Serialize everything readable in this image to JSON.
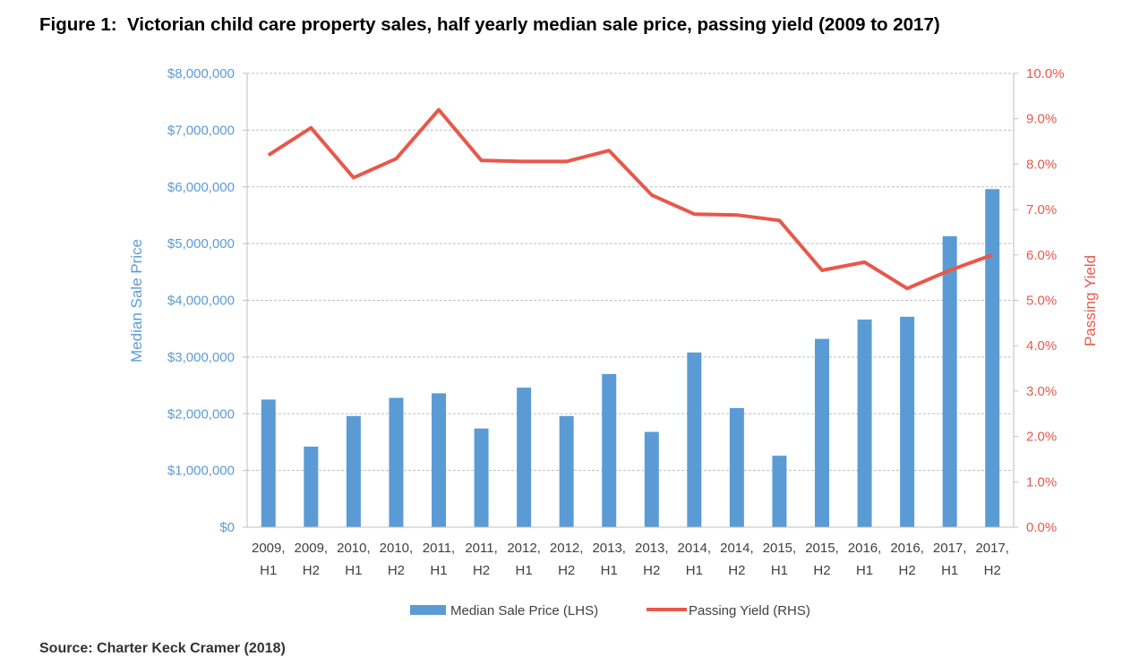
{
  "title": "Figure 1:  Victorian child care property sales, half yearly median sale price, passing yield (2009 to 2017)",
  "source": "Source: Charter Keck Cramer (2018)",
  "chart_data": {
    "type": "bar",
    "categories": [
      [
        "2009,",
        "H1"
      ],
      [
        "2009,",
        "H2"
      ],
      [
        "2010,",
        "H1"
      ],
      [
        "2010,",
        "H2"
      ],
      [
        "2011,",
        "H1"
      ],
      [
        "2011,",
        "H2"
      ],
      [
        "2012,",
        "H1"
      ],
      [
        "2012,",
        "H2"
      ],
      [
        "2013,",
        "H1"
      ],
      [
        "2013,",
        "H2"
      ],
      [
        "2014,",
        "H1"
      ],
      [
        "2014,",
        "H2"
      ],
      [
        "2015,",
        "H1"
      ],
      [
        "2015,",
        "H2"
      ],
      [
        "2016,",
        "H1"
      ],
      [
        "2016,",
        "H2"
      ],
      [
        "2017,",
        "H1"
      ],
      [
        "2017,",
        "H2"
      ]
    ],
    "series": [
      {
        "name": "Median Sale Price (LHS)",
        "type": "bar",
        "axis": "left",
        "color": "#5b9bd5",
        "values": [
          2250000,
          1420000,
          1960000,
          2280000,
          2360000,
          1740000,
          2460000,
          1960000,
          2700000,
          1680000,
          3080000,
          2100000,
          1260000,
          3320000,
          3660000,
          3710000,
          5130000,
          5960000
        ]
      },
      {
        "name": "Passing Yield (RHS)",
        "type": "line",
        "axis": "right",
        "color": "#e8584a",
        "values": [
          8.2,
          8.8,
          7.7,
          8.12,
          9.2,
          8.08,
          8.06,
          8.06,
          8.3,
          7.32,
          6.9,
          6.88,
          6.76,
          5.66,
          5.84,
          5.26,
          5.66,
          6.0
        ]
      }
    ],
    "y_left": {
      "label": "Median Sale Price",
      "range": [
        0,
        8000000
      ],
      "ticks": [
        "$0",
        "$1,000,000",
        "$2,000,000",
        "$3,000,000",
        "$4,000,000",
        "$5,000,000",
        "$6,000,000",
        "$7,000,000",
        "$8,000,000"
      ]
    },
    "y_right": {
      "label": "Passing Yield",
      "range": [
        0,
        10
      ],
      "ticks": [
        "0.0%",
        "1.0%",
        "2.0%",
        "3.0%",
        "4.0%",
        "5.0%",
        "6.0%",
        "7.0%",
        "8.0%",
        "9.0%",
        "10.0%"
      ]
    },
    "grid": true,
    "legend_position": "bottom"
  }
}
